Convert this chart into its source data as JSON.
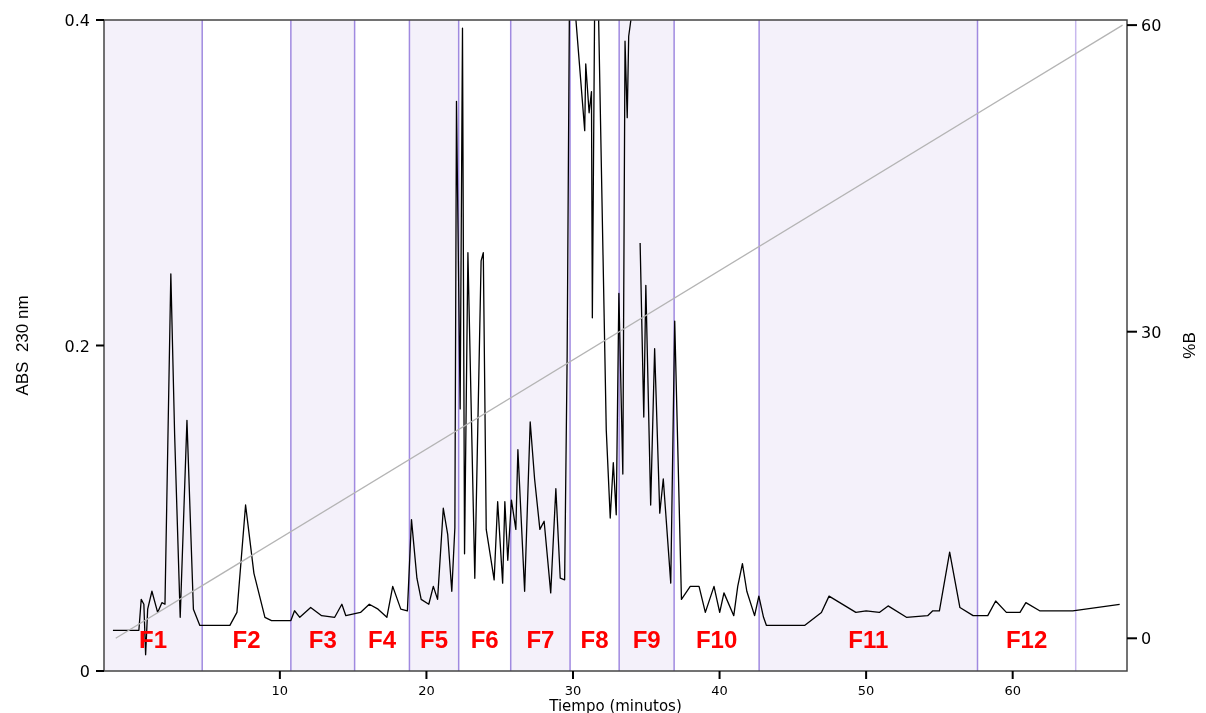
{
  "chart_data": {
    "type": "line",
    "xlabel": "Tiempo (minutos)",
    "ylabel": "ABS  230 nm",
    "y2label": "%B",
    "xlim": [
      -2,
      67.8
    ],
    "xticks": [
      10,
      20,
      30,
      40,
      50,
      60
    ],
    "ylim": [
      0,
      0.4
    ],
    "yticks": [
      0,
      0.2,
      0.4
    ],
    "y2lim": [
      -3.2,
      60.5
    ],
    "y2ticks": [
      0,
      30,
      60
    ],
    "grid": false,
    "marker": "none",
    "line_style": "solid",
    "series": [
      {
        "color": "#000000",
        "x": [
          -1.39,
          0.38,
          0.54,
          0.72,
          0.84,
          0.98,
          1.27,
          1.66,
          1.95,
          2.16,
          2.56,
          2.82,
          3.2,
          3.66,
          4.1,
          4.54,
          6.59,
          7.07,
          7.66,
          8.23,
          8.98,
          9.43,
          10.75,
          11.0,
          11.36,
          12.1,
          12.85,
          13.74,
          14.23,
          14.5,
          15.5,
          16.1,
          16.7,
          17.3,
          17.7,
          18.25,
          18.7,
          18.98,
          19.35,
          19.64,
          20.16,
          20.47,
          20.76,
          21.15,
          21.45,
          21.73,
          21.94,
          22.05,
          22.3,
          22.46,
          22.6,
          22.83,
          23.3,
          23.73,
          23.88,
          24.08,
          24.62,
          24.86,
          25.2,
          25.35,
          25.55,
          25.8,
          26.1,
          26.24,
          26.7,
          27.08,
          27.38,
          27.74,
          28.03,
          28.48,
          28.83,
          29.13,
          29.43,
          29.6,
          29.75,
          30.0,
          30.2,
          30.8,
          30.87,
          31.1,
          31.26,
          31.32,
          31.47,
          31.6,
          31.75,
          32.27,
          32.54,
          32.75,
          32.95,
          33.13,
          33.4,
          33.55,
          33.7,
          33.8,
          33.95,
          34.2,
          34.58,
          34.83,
          34.97,
          35.3,
          35.57,
          35.92,
          36.16,
          36.67,
          36.94,
          37.4,
          38.0,
          38.6,
          39.03,
          39.62,
          40.01,
          40.3,
          40.97,
          41.24,
          41.56,
          41.86,
          42.39,
          42.68,
          43.0,
          43.2,
          45.8,
          46.95,
          47.47,
          49.3,
          50.0,
          50.9,
          51.5,
          52.75,
          54.2,
          54.55,
          55.0,
          55.7,
          56.4,
          57.3,
          58.3,
          58.84,
          59.57,
          60.5,
          60.9,
          61.84,
          64.1,
          67.3
        ],
        "values": [
          0.025,
          0.025,
          0.044,
          0.041,
          0.01,
          0.038,
          0.049,
          0.036,
          0.042,
          0.041,
          0.244,
          0.145,
          0.033,
          0.154,
          0.038,
          0.028,
          0.028,
          0.036,
          0.102,
          0.06,
          0.033,
          0.031,
          0.031,
          0.037,
          0.033,
          0.039,
          0.034,
          0.033,
          0.041,
          0.034,
          0.036,
          0.041,
          0.038,
          0.033,
          0.052,
          0.038,
          0.037,
          0.093,
          0.057,
          0.044,
          0.041,
          0.052,
          0.044,
          0.1,
          0.084,
          0.049,
          0.088,
          0.35,
          0.161,
          0.395,
          0.072,
          0.257,
          0.057,
          0.252,
          0.257,
          0.087,
          0.056,
          0.104,
          0.054,
          0.104,
          0.068,
          0.105,
          0.087,
          0.136,
          0.049,
          0.153,
          0.118,
          0.087,
          0.092,
          0.048,
          0.112,
          0.057,
          0.056,
          0.193,
          0.4,
          null,
          0.4,
          0.332,
          0.373,
          0.343,
          0.356,
          0.217,
          0.4,
          null,
          0.4,
          0.148,
          0.094,
          0.128,
          0.096,
          0.232,
          0.121,
          0.387,
          0.34,
          0.39,
          0.4,
          null,
          0.263,
          0.156,
          0.237,
          0.102,
          0.198,
          0.097,
          0.118,
          0.054,
          0.215,
          0.044,
          0.052,
          0.052,
          0.036,
          0.052,
          0.036,
          0.048,
          0.034,
          0.052,
          0.066,
          0.049,
          0.034,
          0.046,
          0.033,
          0.028,
          0.028,
          0.036,
          0.046,
          0.036,
          0.037,
          0.036,
          0.04,
          0.033,
          0.034,
          0.037,
          0.037,
          0.073,
          0.039,
          0.034,
          0.034,
          0.043,
          0.036,
          0.036,
          0.042,
          0.037,
          0.037,
          0.041
        ]
      },
      {
        "color": "#b4b4b4",
        "axis": "y2",
        "x": [
          -1.2,
          67.5
        ],
        "values": [
          0,
          60
        ]
      }
    ],
    "bands": [
      {
        "axis": "x",
        "from": -2,
        "to": 4.7,
        "label": "F1",
        "color": "#f4f1fa"
      },
      {
        "axis": "x",
        "from": 10.75,
        "to": 15.1,
        "label": "F3",
        "color": "#f4f1fa"
      },
      {
        "axis": "x",
        "from": 18.84,
        "to": 22.2,
        "label": "F5",
        "color": "#f4f1fa"
      },
      {
        "axis": "x",
        "from": 25.75,
        "to": 29.8,
        "label": "F7",
        "color": "#f4f1fa"
      },
      {
        "axis": "x",
        "from": 33.15,
        "to": 36.9,
        "label": "F9",
        "color": "#f4f1fa"
      },
      {
        "axis": "x",
        "from": 42.7,
        "to": 57.6,
        "label": "F11",
        "color": "#f4f1fa"
      }
    ],
    "ref_lines": [
      {
        "axis": "x",
        "value": 4.7,
        "color": "#a08ae0"
      },
      {
        "axis": "x",
        "value": 10.75,
        "color": "#a08ae0"
      },
      {
        "axis": "x",
        "value": 15.1,
        "color": "#a08ae0"
      },
      {
        "axis": "x",
        "value": 18.84,
        "color": "#a08ae0"
      },
      {
        "axis": "x",
        "value": 22.2,
        "color": "#a08ae0"
      },
      {
        "axis": "x",
        "value": 25.75,
        "color": "#a08ae0"
      },
      {
        "axis": "x",
        "value": 29.8,
        "color": "#a08ae0"
      },
      {
        "axis": "x",
        "value": 33.15,
        "color": "#a08ae0"
      },
      {
        "axis": "x",
        "value": 36.9,
        "color": "#a08ae0"
      },
      {
        "axis": "x",
        "value": 42.7,
        "color": "#a08ae0"
      },
      {
        "axis": "x",
        "value": 57.6,
        "color": "#a08ae0"
      },
      {
        "axis": "x",
        "value": 64.3,
        "color": "#c8b8ee"
      }
    ],
    "annotations": [
      "F2",
      "F4",
      "F6",
      "F8",
      "F10",
      "F12"
    ]
  }
}
